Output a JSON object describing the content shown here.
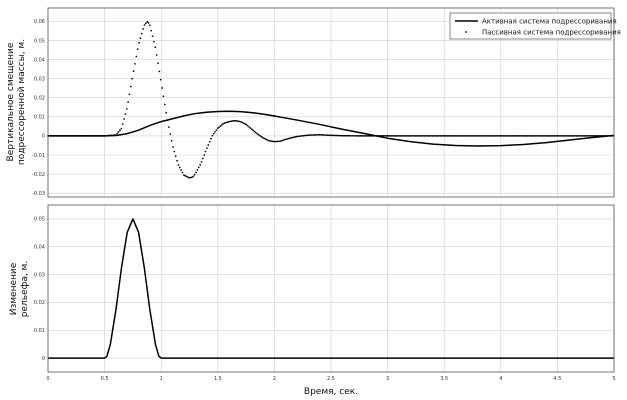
{
  "chart_data": [
    {
      "type": "line",
      "ylabel": "Вертикальное смещение подрессоренной массы, м.",
      "xlabel": "",
      "xlim": [
        0,
        5
      ],
      "ylim": [
        -0.032,
        0.067
      ],
      "xticks": [
        0,
        0.5,
        1,
        1.5,
        2,
        2.5,
        3,
        3.5,
        4,
        4.5,
        5
      ],
      "xtick_labels": [
        "0",
        "0.5",
        "1",
        "1.5",
        "2",
        "2.5",
        "3",
        "3.5",
        "4",
        "4.5",
        "5"
      ],
      "yticks": [
        -0.03,
        -0.02,
        -0.01,
        0,
        0.01,
        0.02,
        0.03,
        0.04,
        0.05,
        0.06
      ],
      "ytick_labels": [
        "-0.03",
        "-0.02",
        "-0.01",
        "0",
        "0.01",
        "0.02",
        "0.03",
        "0.04",
        "0.05",
        "0.06"
      ],
      "grid": true,
      "legend_position": "top-right",
      "series": [
        {
          "name": "Активная система подрессоривания",
          "style": "solid",
          "color": "#000000",
          "x": [
            0,
            0.5,
            0.6,
            0.7,
            0.8,
            0.9,
            1.0,
            1.1,
            1.2,
            1.3,
            1.4,
            1.5,
            1.6,
            1.7,
            1.8,
            1.9,
            2.0,
            2.2,
            2.4,
            2.6,
            2.8,
            3.0,
            3.2,
            3.4,
            3.6,
            3.8,
            4.0,
            4.2,
            4.4,
            4.6,
            4.8,
            5.0
          ],
          "y": [
            0,
            0,
            0.0002,
            0.0012,
            0.003,
            0.0055,
            0.0075,
            0.009,
            0.0105,
            0.0117,
            0.0124,
            0.0128,
            0.0129,
            0.0127,
            0.0122,
            0.0114,
            0.0104,
            0.0083,
            0.006,
            0.0035,
            0.0012,
            -0.0012,
            -0.003,
            -0.0043,
            -0.005,
            -0.0053,
            -0.0051,
            -0.0045,
            -0.0035,
            -0.0022,
            -0.0009,
            0.0003
          ]
        },
        {
          "name": "Пассивная система подрессоривания",
          "style": "dotted",
          "color": "#000000",
          "x": [
            0,
            0.5,
            0.6,
            0.65,
            0.7,
            0.75,
            0.8,
            0.85,
            0.88,
            0.9,
            0.95,
            1.0,
            1.05,
            1.1,
            1.15,
            1.2,
            1.25,
            1.28,
            1.3,
            1.35,
            1.4,
            1.45,
            1.5,
            1.55,
            1.6,
            1.65,
            1.7,
            1.75,
            1.8,
            1.85,
            1.9,
            1.95,
            2.0,
            2.05,
            2.1,
            2.15,
            2.2,
            2.3,
            2.4,
            2.5,
            2.6,
            2.8,
            3.0,
            3.5,
            4.0,
            4.5,
            5.0
          ],
          "y": [
            0,
            0,
            0.0005,
            0.004,
            0.015,
            0.032,
            0.048,
            0.058,
            0.06,
            0.058,
            0.046,
            0.028,
            0.01,
            -0.005,
            -0.015,
            -0.0205,
            -0.022,
            -0.0215,
            -0.02,
            -0.0145,
            -0.007,
            0,
            0.004,
            0.0065,
            0.0075,
            0.008,
            0.0075,
            0.006,
            0.0035,
            0.001,
            -0.001,
            -0.0025,
            -0.003,
            -0.0028,
            -0.0018,
            -0.001,
            -0.0003,
            0.0004,
            0.0006,
            0.0003,
            0.0001,
            0,
            0,
            0,
            0,
            0,
            0
          ]
        }
      ]
    },
    {
      "type": "line",
      "ylabel": "Изменение рельефа, м.",
      "xlabel": "Время, сек.",
      "xlim": [
        0,
        5
      ],
      "ylim": [
        -0.005,
        0.055
      ],
      "xticks": [
        0,
        0.5,
        1,
        1.5,
        2,
        2.5,
        3,
        3.5,
        4,
        4.5,
        5
      ],
      "xtick_labels": [
        "0",
        "0.5",
        "1",
        "1.5",
        "2",
        "2.5",
        "3",
        "3.5",
        "4",
        "4.5",
        "5"
      ],
      "yticks": [
        0,
        0.01,
        0.02,
        0.03,
        0.04,
        0.05
      ],
      "ytick_labels": [
        "0",
        "0.01",
        "0.02",
        "0.03",
        "0.04",
        "0.05"
      ],
      "grid": true,
      "series": [
        {
          "style": "solid",
          "color": "#000000",
          "x": [
            0,
            0.5,
            0.52,
            0.55,
            0.6,
            0.65,
            0.7,
            0.75,
            0.8,
            0.85,
            0.9,
            0.95,
            0.98,
            1.0,
            5.0
          ],
          "y": [
            0,
            0,
            0.0006,
            0.0048,
            0.0173,
            0.0327,
            0.0452,
            0.05,
            0.0452,
            0.0327,
            0.0173,
            0.0048,
            0.0006,
            0,
            0
          ]
        }
      ]
    }
  ]
}
